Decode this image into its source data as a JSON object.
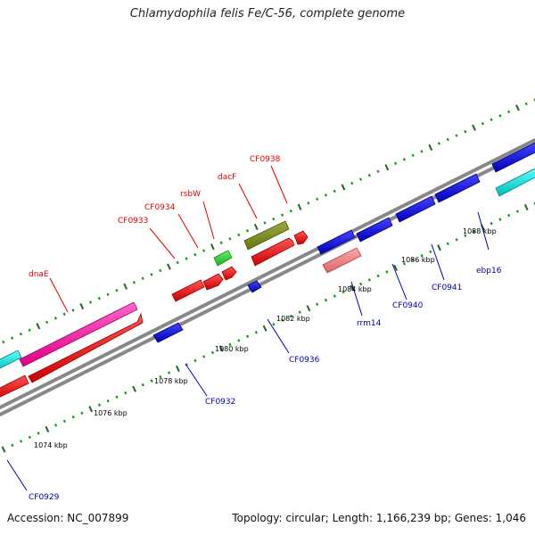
{
  "title": "Chlamydophila felis Fe/C-56, complete genome",
  "footer": {
    "accession": "Accession: NC_007899",
    "summary": "Topology: circular; Length: 1,166,239 bp; Genes: 1,046"
  },
  "colors": {
    "backbone": "#888888",
    "tick_major": "#226622",
    "tick_minor": "#119911",
    "scale_label": "#000000",
    "label_top": "#dd0000",
    "label_bottom": "#0000aa"
  },
  "scale_labels": [
    "1074 kbp",
    "1076 kbp",
    "1078 kbp",
    "1080 kbp",
    "1082 kbp",
    "1084 kbp",
    "1086 kbp",
    "1088 kbp"
  ],
  "gene_labels_top": [
    "dnaE",
    "CF0933",
    "CF0934",
    "rsbW",
    "dacF",
    "CF0938"
  ],
  "gene_labels_bottom": [
    "CF0929",
    "CF0932",
    "CF0936",
    "rrm14",
    "CF0940",
    "CF0941",
    "ebp16"
  ],
  "feature_colors": [
    "red",
    "blue",
    "magenta",
    "cyan",
    "green",
    "olive",
    "salmon"
  ]
}
